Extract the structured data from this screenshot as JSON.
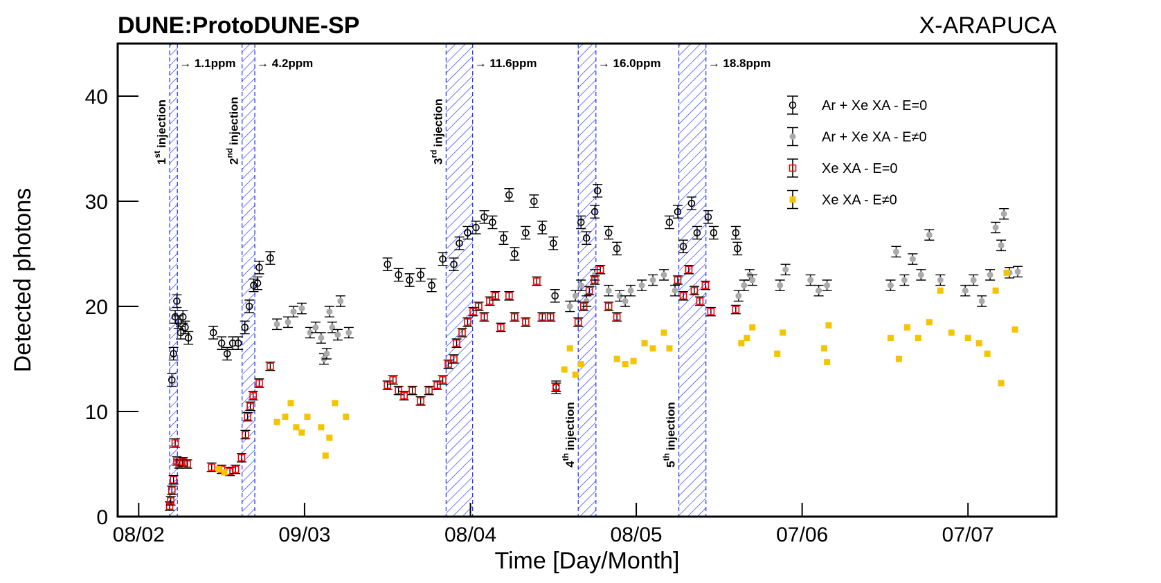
{
  "chart_data": {
    "type": "scatter",
    "title": "DUNE:ProtoDUNE-SP",
    "subtitle": "X-ARAPUCA",
    "xlabel": "Time [Day/Month]",
    "ylabel": "Detected photons",
    "xlim": [
      -3.8,
      166
    ],
    "ylim": [
      0,
      45
    ],
    "xticks": [
      {
        "value": 0,
        "label": "08/02"
      },
      {
        "value": 30,
        "label": "09/03"
      },
      {
        "value": 60,
        "label": "08/04"
      },
      {
        "value": 90,
        "label": "08/05"
      },
      {
        "value": 120,
        "label": "07/06"
      },
      {
        "value": 150,
        "label": "07/07"
      }
    ],
    "yticks": [
      0,
      10,
      20,
      30,
      40
    ],
    "legend": "upper right",
    "bands": [
      {
        "start": 5.6,
        "end": 7.0,
        "ordinal": "1",
        "suffix": "st",
        "text": "injection",
        "ppm": "→ 1.1ppm"
      },
      {
        "start": 18.7,
        "end": 21.0,
        "ordinal": "2",
        "suffix": "nd",
        "text": "injection",
        "ppm": "→ 4.2ppm"
      },
      {
        "start": 55.6,
        "end": 60.4,
        "ordinal": "3",
        "suffix": "rd",
        "text": "injection",
        "ppm": "→ 11.6ppm"
      },
      {
        "start": 79.5,
        "end": 82.7,
        "ordinal": "4",
        "suffix": "th",
        "text": "injection",
        "ppm": "→ 16.0ppm"
      },
      {
        "start": 97.7,
        "end": 102.6,
        "ordinal": "5",
        "suffix": "th",
        "text": "injection",
        "ppm": "→ 18.8ppm"
      }
    ],
    "series": [
      {
        "name": "Ar + Xe XA - E=0",
        "color": "#000000",
        "marker": "open-circle",
        "error": 0.6,
        "x": [
          6,
          6.3,
          6.6,
          6.9,
          7.2,
          7.6,
          8,
          8.4,
          9,
          13.5,
          15,
          16,
          17,
          18,
          19.2,
          20,
          20.8,
          21.5,
          21.8,
          23.8,
          45,
          47,
          49,
          51,
          53,
          55,
          57,
          58,
          59.5,
          61,
          62.5,
          64,
          66,
          67,
          68,
          70,
          71.5,
          73,
          75,
          75.3,
          75.5,
          80,
          81,
          82.5,
          83,
          85,
          86.5,
          96,
          97.5,
          98.5,
          100,
          101,
          103,
          104,
          108,
          108.3
        ],
        "values": [
          13,
          15.5,
          19,
          20.5,
          18.5,
          17.5,
          19,
          18,
          17,
          17.5,
          16.5,
          15.5,
          16.5,
          16.5,
          18,
          20,
          22,
          22.2,
          23.7,
          24.6,
          24,
          23,
          22.5,
          23,
          22,
          24.5,
          24,
          26,
          27,
          27.5,
          28.5,
          28,
          26.5,
          30.6,
          25,
          27,
          30,
          27.5,
          26,
          21,
          12.3,
          28,
          26.5,
          29,
          31,
          27,
          25.5,
          28,
          29,
          25.7,
          29.8,
          27,
          28.5,
          27,
          27,
          25.5
        ]
      },
      {
        "name": "Ar + Xe XA - E≠0",
        "color": "#aaaaaa",
        "marker": "filled-circle",
        "error": 0.5,
        "x": [
          25,
          27,
          28,
          29.5,
          31,
          32,
          33,
          35,
          36,
          33.5,
          34,
          34.5,
          36.5,
          38,
          78,
          79,
          80,
          81,
          82.5,
          85,
          87,
          88,
          89,
          91,
          93,
          95,
          97,
          108.5,
          109.5,
          110.5,
          111,
          116,
          117,
          121.5,
          123,
          124.5,
          136,
          137,
          138.5,
          140,
          141.5,
          143,
          145,
          149.5,
          151,
          152.5,
          154,
          155,
          156,
          156.5,
          157.5,
          159
        ],
        "values": [
          18.3,
          18.5,
          19.5,
          19.8,
          17.5,
          18,
          17,
          18,
          17.3,
          15,
          15.5,
          19.5,
          20.5,
          17.5,
          20,
          21,
          22,
          20.5,
          23,
          21.5,
          21,
          20.5,
          21.5,
          22,
          22.5,
          23,
          21.5,
          21,
          22,
          23,
          22.5,
          22,
          23.5,
          22.5,
          21.5,
          22,
          22,
          25.2,
          22.5,
          24.5,
          23,
          26.8,
          22.5,
          21.5,
          22.5,
          20.5,
          23,
          27.5,
          25.8,
          28.8,
          23.2,
          23.3
        ]
      },
      {
        "name": "Xe XA - E=0",
        "color": "#ff0000",
        "marker": "open-square",
        "error": 0.4,
        "x": [
          5.6,
          5.8,
          6,
          6.3,
          6.6,
          6.9,
          7.3,
          8,
          8.8,
          13.2,
          15,
          16.5,
          17.5,
          18.6,
          19.3,
          19.7,
          20.2,
          20.7,
          21.8,
          23.8,
          45,
          46,
          47,
          48,
          49.5,
          51,
          52.5,
          54,
          55,
          56,
          57,
          57.5,
          58.5,
          59.5,
          60.5,
          61.5,
          62.5,
          63.5,
          64.5,
          65.5,
          67,
          68,
          70,
          72,
          73,
          74.5,
          75.5,
          79.5,
          80.5,
          81.5,
          82.5,
          83.5,
          85,
          86.5,
          97.5,
          98.5,
          99.5,
          100.5,
          101.5,
          102.5,
          103.5,
          108
        ],
        "values": [
          1,
          1.5,
          2.5,
          3.5,
          7,
          5.3,
          5,
          5.2,
          5,
          4.7,
          4.5,
          4.3,
          4.5,
          5.6,
          7.8,
          9.5,
          10.5,
          11.5,
          12.7,
          14.3,
          12.5,
          13,
          12,
          11.5,
          12,
          11,
          12,
          12.5,
          13,
          14.5,
          15,
          16.5,
          17.5,
          18.5,
          19.5,
          20,
          19,
          20.5,
          21,
          18,
          21,
          19,
          18.5,
          22.4,
          19,
          19,
          12.3,
          18.5,
          20,
          21.5,
          22.5,
          23.5,
          20,
          19,
          22.5,
          21,
          23.5,
          21.5,
          20.5,
          22,
          19.5,
          19.7
        ]
      },
      {
        "name": "Xe XA - E≠0",
        "color": "#f5c400",
        "marker": "filled-square",
        "x": [
          14.5,
          15.5,
          25,
          26.5,
          27.5,
          28.5,
          29.5,
          30.5,
          33,
          33.8,
          34.5,
          35.5,
          37.5,
          77,
          78,
          79,
          80,
          86.5,
          88,
          89.5,
          91.5,
          93,
          95,
          96,
          109,
          110,
          111,
          115.5,
          116.5,
          124,
          124.5,
          124.8,
          136,
          137.5,
          139,
          141,
          143,
          145,
          147,
          150,
          152,
          153.5,
          155,
          156,
          157,
          158.5
        ],
        "values": [
          4.5,
          4.2,
          9,
          9.5,
          10.8,
          8.5,
          8,
          9.5,
          8.5,
          5.8,
          7.5,
          10.8,
          9.5,
          14,
          16,
          13.5,
          14.5,
          15,
          14.5,
          14.8,
          16.5,
          16,
          17.5,
          16,
          16.5,
          17,
          18,
          15.5,
          17.5,
          16,
          14.7,
          18.2,
          17,
          15,
          18,
          17,
          18.5,
          21.5,
          17.5,
          17,
          16.5,
          15.5,
          21.5,
          12.7,
          23.2,
          17.8
        ]
      }
    ]
  }
}
